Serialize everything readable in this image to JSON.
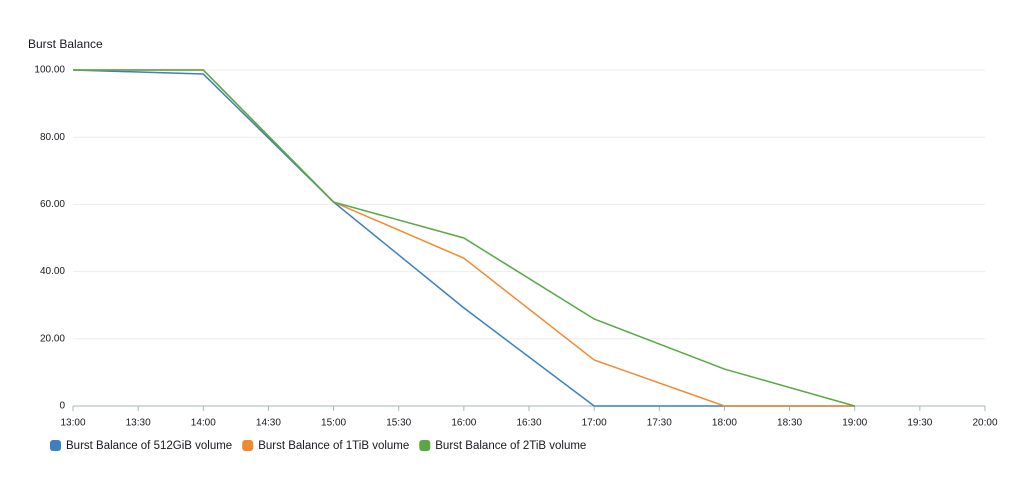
{
  "chart_data": {
    "type": "line",
    "title": "Burst Balance",
    "x": [
      13,
      14,
      15,
      16,
      17,
      18,
      19
    ],
    "series": [
      {
        "name": "Burst Balance of 512GiB volume",
        "color": "#3f7fbf",
        "values": [
          100,
          98.8,
          60.7,
          29.2,
          0,
          0,
          0
        ]
      },
      {
        "name": "Burst Balance of 1TiB volume",
        "color": "#ef8a33",
        "values": [
          100,
          100,
          60.7,
          44,
          13.7,
          0,
          0
        ]
      },
      {
        "name": "Burst Balance of 2TiB volume",
        "color": "#57a845",
        "values": [
          100,
          100,
          60.7,
          50,
          25.9,
          11,
          0
        ]
      }
    ],
    "xlim": [
      13,
      20
    ],
    "xticks": [
      {
        "value": 13,
        "label": "13:00"
      },
      {
        "value": 13.5,
        "label": "13:30"
      },
      {
        "value": 14,
        "label": "14:00"
      },
      {
        "value": 14.5,
        "label": "14:30"
      },
      {
        "value": 15,
        "label": "15:00"
      },
      {
        "value": 15.5,
        "label": "15:30"
      },
      {
        "value": 16,
        "label": "16:00"
      },
      {
        "value": 16.5,
        "label": "16:30"
      },
      {
        "value": 17,
        "label": "17:00"
      },
      {
        "value": 17.5,
        "label": "17:30"
      },
      {
        "value": 18,
        "label": "18:00"
      },
      {
        "value": 18.5,
        "label": "18:30"
      },
      {
        "value": 19,
        "label": "19:00"
      },
      {
        "value": 19.5,
        "label": "19:30"
      },
      {
        "value": 20,
        "label": "20:00"
      }
    ],
    "ylim": [
      0,
      100
    ],
    "yticks": [
      0,
      {
        "value": 20,
        "label": "20.00"
      },
      {
        "value": 40,
        "label": "40.00"
      },
      {
        "value": 60,
        "label": "60.00"
      },
      {
        "value": 80,
        "label": "80.00"
      },
      {
        "value": 100,
        "label": "100.00"
      }
    ],
    "grid": true,
    "legend": "bottom"
  }
}
